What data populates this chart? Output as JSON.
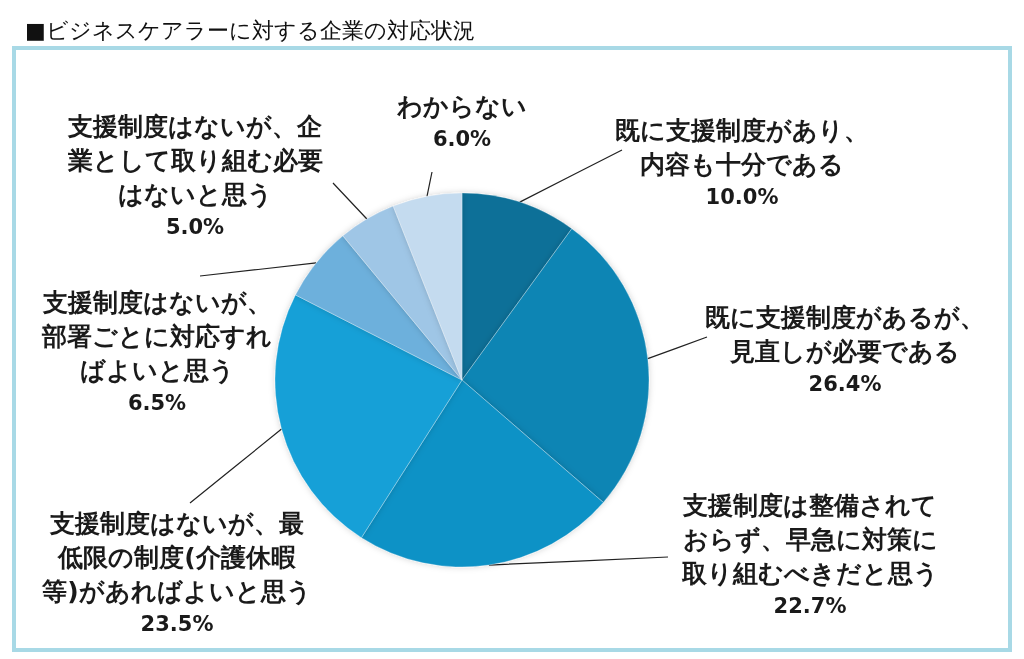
{
  "chart_data": {
    "type": "pie",
    "title": "■ビジネスケアラーに対する企業の対応状況",
    "categories": [
      "既に支援制度があり、内容も十分である",
      "既に支援制度があるが、見直しが必要である",
      "支援制度は整備されておらず、早急に対策に取り組むべきだと思う",
      "支援制度はないが、最低限の制度(介護休暇等)があればよいと思う",
      "支援制度はないが、部署ごとに対応すればよいと思う",
      "支援制度はないが、企業として取り組む必要はないと思う",
      "わからない"
    ],
    "values": [
      10.0,
      26.4,
      22.7,
      23.5,
      6.5,
      5.0,
      6.0
    ],
    "colors": [
      "#0a7098",
      "#0d85b4",
      "#1192c6",
      "#15a0d7",
      "#6db0dc",
      "#9fc6e6",
      "#c4dbef"
    ],
    "value_labels": [
      "10.0%",
      "26.4%",
      "22.7%",
      "23.5%",
      "6.5%",
      "5.0%",
      "6.0%"
    ]
  }
}
